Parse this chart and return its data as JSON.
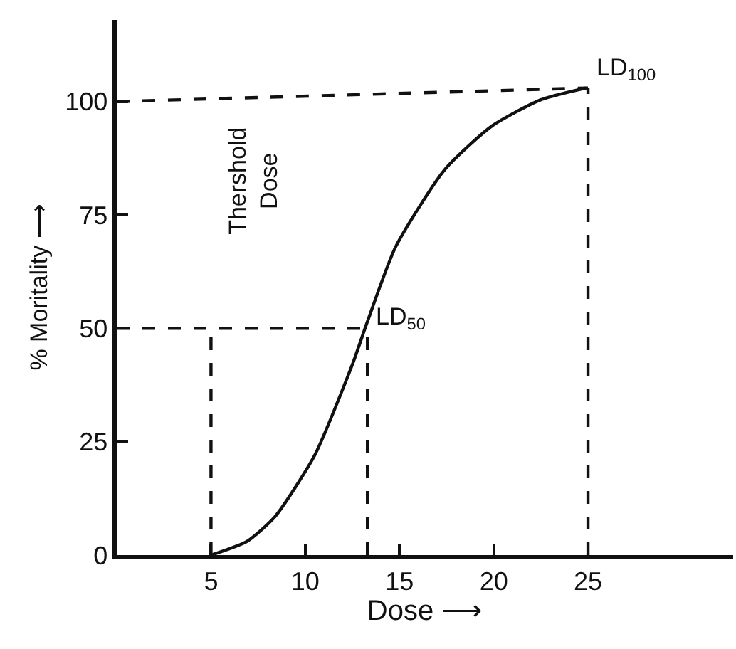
{
  "chart_data": {
    "type": "line",
    "xlabel": "Dose ⟶",
    "ylabel": "% Moritality ⟶",
    "xlim": [
      0,
      32.7
    ],
    "ylim": [
      0,
      118
    ],
    "xticks": [
      5,
      10,
      15,
      20,
      25
    ],
    "yticks": [
      0,
      25,
      50,
      75,
      100
    ],
    "marker": "none",
    "series": [
      {
        "color": "#111111",
        "line_style": "solid",
        "x": [
          5,
          6.9,
          8.4,
          10.5,
          12.5,
          13.3,
          14.8,
          17.4,
          19.9,
          22.5,
          24.9
        ],
        "values": [
          0,
          3,
          8.5,
          22,
          42,
          51.5,
          68,
          85,
          94.6,
          100.4,
          103
        ]
      },
      {
        "color": "#111111",
        "line_style": "dashed",
        "x": [
          0,
          13.3
        ],
        "values": [
          50,
          50
        ]
      },
      {
        "color": "#111111",
        "line_style": "dashed",
        "x": [
          5,
          5
        ],
        "values": [
          0,
          50
        ]
      },
      {
        "color": "#111111",
        "line_style": "dashed",
        "x": [
          13.3,
          13.3
        ],
        "values": [
          0,
          50
        ]
      },
      {
        "color": "#111111",
        "line_style": "dashed",
        "x": [
          0,
          25
        ],
        "values": [
          100,
          103
        ]
      },
      {
        "color": "#111111",
        "line_style": "dashed",
        "x": [
          25,
          25
        ],
        "values": [
          0,
          103
        ]
      }
    ],
    "annotations": [
      "Thershold\nDose",
      {
        "text": "LD$_{50}$",
        "x": 13.3,
        "y": 48
      },
      {
        "text": "LD$_{100}$",
        "x": 25,
        "y": 103
      }
    ]
  }
}
